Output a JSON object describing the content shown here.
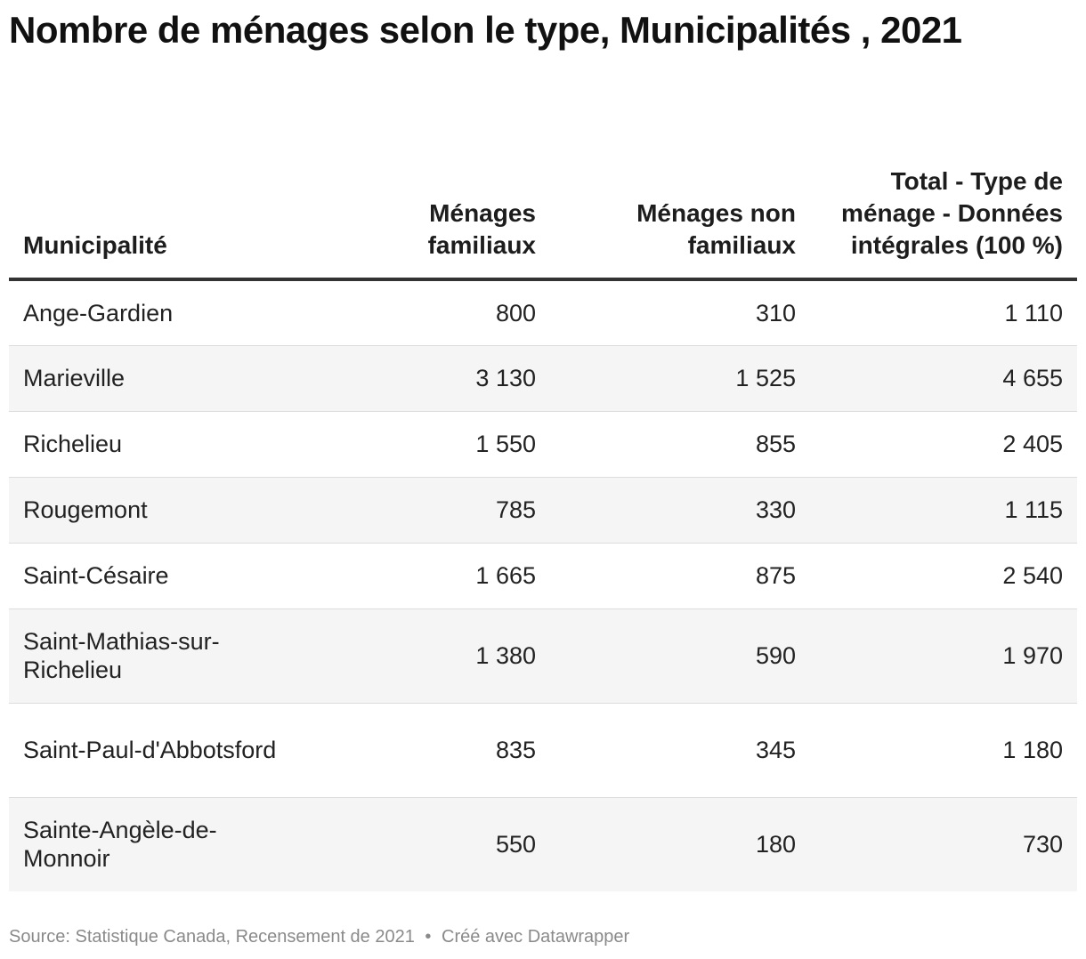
{
  "title": "Nombre de ménages selon le type, Municipalités , 2021",
  "source": {
    "text": "Source: Statistique Canada, Recensement de 2021",
    "separator": "•",
    "credit": "Créé avec Datawrapper"
  },
  "chart_data": {
    "type": "table",
    "title": "Nombre de ménages selon le type, Municipalités , 2021",
    "columns": [
      "Municipalité",
      "Ménages familiaux",
      "Ménages non familiaux",
      "Total - Type de ménage - Données intégrales (100 %)"
    ],
    "rows": [
      [
        "Ange-Gardien",
        "800",
        "310",
        "1 110"
      ],
      [
        "Marieville",
        "3 130",
        "1 525",
        "4 655"
      ],
      [
        "Richelieu",
        "1 550",
        "855",
        "2 405"
      ],
      [
        "Rougemont",
        "785",
        "330",
        "1 115"
      ],
      [
        "Saint-Césaire",
        "1 665",
        "875",
        "2 540"
      ],
      [
        "Saint-Mathias-sur-Richelieu",
        "1 380",
        "590",
        "1 970"
      ],
      [
        "Saint-Paul-d'Abbotsford",
        "835",
        "345",
        "1 180"
      ],
      [
        "Sainte-Angèle-de-Monnoir",
        "550",
        "180",
        "730"
      ]
    ]
  }
}
